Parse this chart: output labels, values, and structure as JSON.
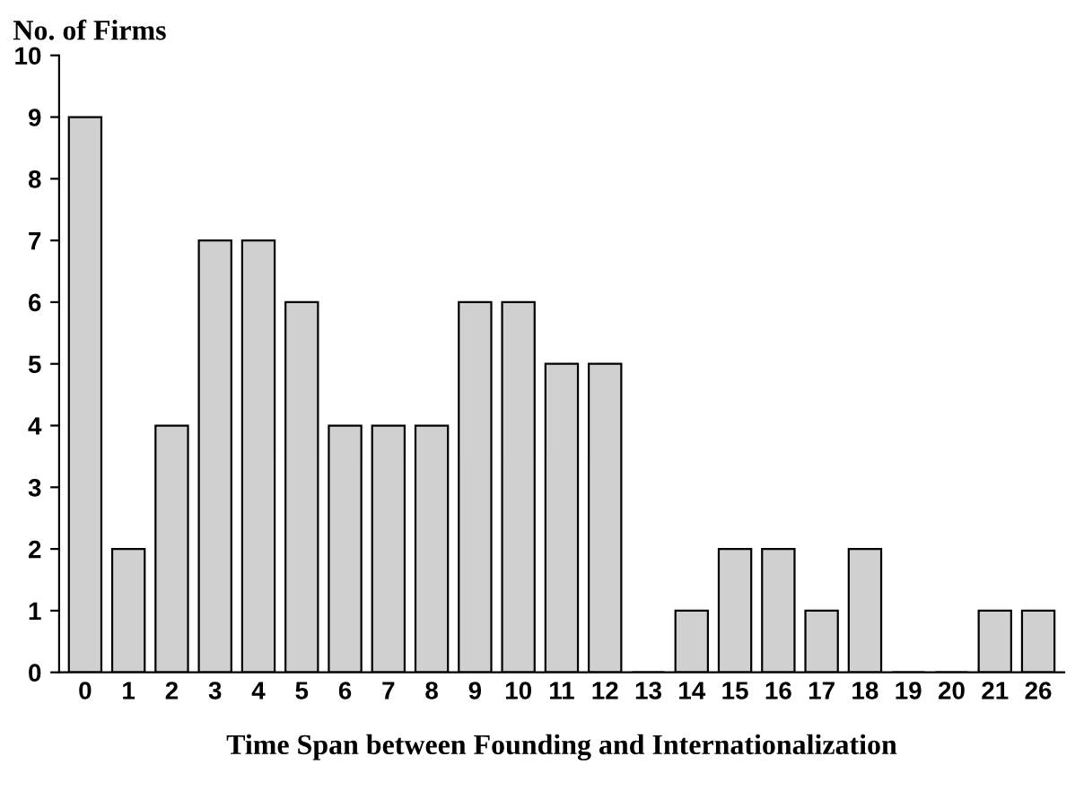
{
  "chart_data": {
    "type": "bar",
    "ylabel": "No. of Firms",
    "xlabel": "Time Span between Founding and Internationalization",
    "categories": [
      "0",
      "1",
      "2",
      "3",
      "4",
      "5",
      "6",
      "7",
      "8",
      "9",
      "10",
      "11",
      "12",
      "13",
      "14",
      "15",
      "16",
      "17",
      "18",
      "19",
      "20",
      "21",
      "26"
    ],
    "values": [
      9,
      2,
      4,
      7,
      7,
      6,
      4,
      4,
      4,
      6,
      6,
      5,
      5,
      0,
      1,
      2,
      2,
      1,
      2,
      0,
      0,
      1,
      1
    ],
    "color": "#d0d0d0",
    "ylim": [
      0,
      10
    ],
    "yticks": [
      0,
      1,
      2,
      3,
      4,
      5,
      6,
      7,
      8,
      9,
      10
    ],
    "grid": false
  }
}
